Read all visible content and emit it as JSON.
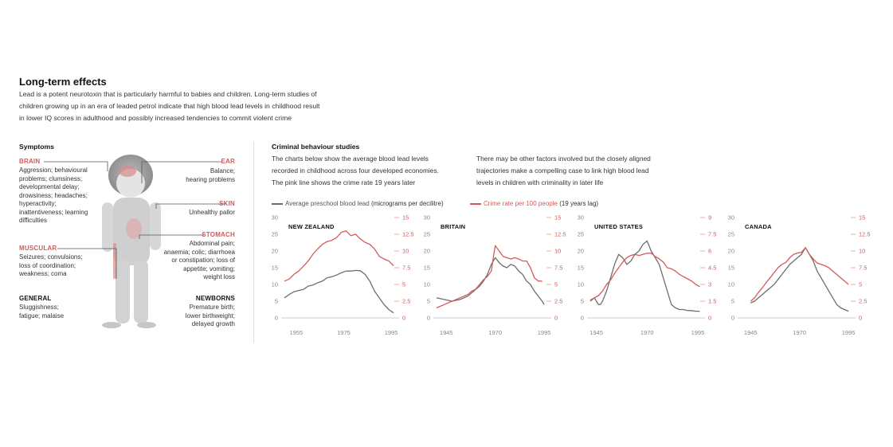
{
  "title": "Long-term effects",
  "intro_lines": [
    "Lead is a potent neurotoxin that is particularly harmful to babies and children. Long-term studies of",
    "children growing up in an era of leaded petrol indicate that high blood lead levels in childhood result",
    "in lower IQ scores in adulthood and possibly increased tendencies to commit violent crime"
  ],
  "symptoms": {
    "heading": "Symptoms",
    "brain": {
      "label": "BRAIN",
      "lines": [
        "Aggression; behavioural",
        "problems; clumsiness;",
        "developmental delay;",
        "drowsiness; headaches;",
        "hyperactivity;",
        "inattentiveness; learning",
        "difficulties"
      ]
    },
    "muscular": {
      "label": "MUSCULAR",
      "lines": [
        "Seizures; convulsions;",
        "loss of coordination;",
        "weakness; coma"
      ]
    },
    "general": {
      "label": "GENERAL",
      "lines": [
        "Sluggishness;",
        "fatigue; malaise"
      ]
    },
    "ear": {
      "label": "EAR",
      "lines": [
        "Balance;",
        "hearing problems"
      ]
    },
    "skin": {
      "label": "SKIN",
      "lines": [
        "Unhealthy pallor"
      ]
    },
    "stomach": {
      "label": "STOMACH",
      "lines": [
        "Abdominal pain;",
        "anaemia; colic; diarrhoea",
        "or constipation; loss of",
        "appetite; vomiting;",
        "weight loss"
      ]
    },
    "newborns": {
      "label": "NEWBORNS",
      "lines": [
        "Premature birth;",
        "lower birthweight;",
        "delayed growth"
      ]
    }
  },
  "criminal": {
    "heading": "Criminal behaviour studies",
    "col1": [
      "The charts below show the average blood lead levels",
      "recorded in childhood across four developed economies.",
      "The pink line shows the crime rate 19 years later"
    ],
    "col2": [
      "There may be other factors involved but the closely aligned",
      "trajectories make a compelling case to link high blood lead",
      "levels in children with criminality in later life"
    ],
    "legend_lead_prefix": "Average preschool blood lead",
    "legend_lead_unit": "(micrograms per decilitre)",
    "legend_crime_prefix": "Crime rate per 100 people",
    "legend_crime_unit": "(19 years lag)"
  },
  "colors": {
    "lead": "#6e6e6e",
    "crime": "#d45a5a"
  },
  "chart_data": [
    {
      "type": "line",
      "title": "NEW ZEALAND",
      "ylim_left": [
        0,
        30
      ],
      "yticks_left": [
        "0",
        "5",
        "10",
        "15",
        "20",
        "25",
        "30"
      ],
      "ylim_right": [
        0,
        15
      ],
      "yticks_right": [
        "0",
        "2.5",
        "5",
        "7.5",
        "10",
        "12.5",
        "15"
      ],
      "xlim": [
        1950,
        1997
      ],
      "xticks": [
        "1955",
        "1975",
        "1995"
      ],
      "xtick_values": [
        1955,
        1975,
        1995
      ],
      "series": [
        {
          "name": "Average preschool blood lead",
          "axis": "left",
          "x": [
            1950,
            1952,
            1954,
            1956,
            1958,
            1960,
            1962,
            1964,
            1966,
            1968,
            1970,
            1972,
            1974,
            1976,
            1978,
            1980,
            1982,
            1984,
            1986,
            1988,
            1990,
            1992,
            1994,
            1996
          ],
          "y": [
            6,
            7,
            7.8,
            8.2,
            8.5,
            9.5,
            9.8,
            10.5,
            11,
            12,
            12.3,
            12.8,
            13.5,
            14,
            14,
            14.2,
            14.1,
            13,
            11,
            8,
            6,
            4,
            2.5,
            1.5
          ]
        },
        {
          "name": "Crime rate per 100 people",
          "axis": "right",
          "x": [
            1950,
            1952,
            1954,
            1956,
            1958,
            1960,
            1962,
            1964,
            1966,
            1968,
            1970,
            1972,
            1974,
            1976,
            1978,
            1980,
            1982,
            1984,
            1986,
            1988,
            1990,
            1992,
            1994,
            1996
          ],
          "y": [
            5.5,
            5.8,
            6.5,
            7,
            7.7,
            8.5,
            9.5,
            10.3,
            11,
            11.4,
            11.6,
            12,
            12.8,
            13,
            12.3,
            12.5,
            11.8,
            11.3,
            11,
            10.3,
            9.2,
            8.8,
            8.5,
            7.8
          ]
        }
      ]
    },
    {
      "type": "line",
      "title": "BRITAIN",
      "ylim_left": [
        0,
        30
      ],
      "yticks_left": [
        "0",
        "5",
        "10",
        "15",
        "20",
        "25",
        "30"
      ],
      "ylim_right": [
        0,
        15
      ],
      "yticks_right": [
        "0",
        "2.5",
        "5",
        "7.5",
        "10",
        "12.5",
        "15"
      ],
      "xlim": [
        1940,
        1997
      ],
      "xticks": [
        "1945",
        "1970",
        "1995"
      ],
      "xtick_values": [
        1945,
        1970,
        1995
      ],
      "series": [
        {
          "name": "Average preschool blood lead",
          "axis": "left",
          "x": [
            1940,
            1944,
            1948,
            1952,
            1956,
            1958,
            1960,
            1962,
            1964,
            1966,
            1968,
            1970,
            1972,
            1974,
            1976,
            1978,
            1980,
            1982,
            1984,
            1986,
            1988,
            1990,
            1992,
            1994,
            1995
          ],
          "y": [
            6,
            5.5,
            5,
            5.5,
            6.5,
            7.5,
            8.5,
            9.5,
            11,
            13,
            16,
            18,
            16.5,
            15.5,
            15,
            16,
            15.5,
            14,
            13,
            11,
            10,
            8,
            6.5,
            5,
            4
          ]
        },
        {
          "name": "Crime rate per 100 people",
          "axis": "right",
          "x": [
            1940,
            1944,
            1948,
            1952,
            1956,
            1958,
            1960,
            1962,
            1964,
            1966,
            1968,
            1969,
            1970,
            1972,
            1974,
            1976,
            1978,
            1980,
            1982,
            1984,
            1986,
            1988,
            1990,
            1992,
            1994
          ],
          "y": [
            1.5,
            2,
            2.5,
            3,
            3.5,
            4,
            4.3,
            5,
            5.7,
            6.2,
            7,
            9,
            10.8,
            10,
            9.2,
            9,
            8.8,
            9,
            8.8,
            8.5,
            8.5,
            7.5,
            6,
            5.5,
            5.5
          ]
        }
      ]
    },
    {
      "type": "line",
      "title": "UNITED STATES",
      "ylim_left": [
        0,
        30
      ],
      "yticks_left": [
        "0",
        "5",
        "10",
        "15",
        "20",
        "25",
        "30"
      ],
      "ylim_right": [
        0,
        9
      ],
      "yticks_right": [
        "0",
        "1.5",
        "3",
        "4.5",
        "6",
        "7.5",
        "9"
      ],
      "xlim": [
        1942,
        1997
      ],
      "xticks": [
        "1945",
        "1970",
        "1995"
      ],
      "xtick_values": [
        1945,
        1970,
        1995
      ],
      "series": [
        {
          "name": "Average preschool blood lead",
          "axis": "left",
          "x": [
            1942,
            1944,
            1946,
            1947,
            1948,
            1950,
            1952,
            1954,
            1956,
            1958,
            1960,
            1962,
            1964,
            1966,
            1968,
            1970,
            1972,
            1974,
            1976,
            1978,
            1980,
            1982,
            1984,
            1986,
            1988,
            1990,
            1992,
            1994,
            1996
          ],
          "y": [
            5,
            6,
            4,
            4,
            5,
            8,
            12,
            16,
            19,
            18,
            16,
            17,
            19,
            20,
            22,
            23,
            20,
            18,
            16,
            12,
            8,
            4,
            3,
            2.5,
            2.5,
            2.2,
            2.2,
            2,
            2
          ]
        },
        {
          "name": "Crime rate per 100 people",
          "axis": "right",
          "x": [
            1942,
            1944,
            1946,
            1948,
            1950,
            1952,
            1954,
            1956,
            1958,
            1960,
            1962,
            1964,
            1966,
            1968,
            1970,
            1972,
            1974,
            1976,
            1978,
            1980,
            1982,
            1984,
            1986,
            1988,
            1990,
            1992,
            1994,
            1996
          ],
          "y": [
            1.6,
            1.8,
            2,
            2.4,
            3,
            3.4,
            4,
            4.5,
            5,
            5.4,
            5.6,
            5.7,
            5.6,
            5.7,
            5.8,
            5.8,
            5.5,
            5.3,
            5,
            4.5,
            4.4,
            4.2,
            3.9,
            3.7,
            3.5,
            3.3,
            3,
            2.8
          ]
        }
      ]
    },
    {
      "type": "line",
      "title": "CANADA",
      "ylim_left": [
        0,
        30
      ],
      "yticks_left": [
        "0",
        "5",
        "10",
        "15",
        "20",
        "25",
        "30"
      ],
      "ylim_right": [
        0,
        15
      ],
      "yticks_right": [
        "0",
        "2.5",
        "5",
        "7.5",
        "10",
        "12.5",
        "15"
      ],
      "xlim": [
        1940,
        1997
      ],
      "xticks": [
        "1945",
        "1970",
        "1995"
      ],
      "xtick_values": [
        1945,
        1970,
        1995
      ],
      "series": [
        {
          "name": "Average preschool blood lead",
          "axis": "left",
          "x": [
            1945,
            1947,
            1949,
            1951,
            1953,
            1955,
            1957,
            1959,
            1961,
            1963,
            1965,
            1967,
            1969,
            1971,
            1973,
            1975,
            1977,
            1979,
            1981,
            1983,
            1985,
            1987,
            1989,
            1991,
            1993,
            1995
          ],
          "y": [
            4.5,
            5,
            6,
            7,
            8,
            9,
            10,
            11.5,
            13,
            14.5,
            16,
            17,
            18,
            19,
            21,
            19,
            17,
            14,
            12,
            10,
            8,
            6,
            4,
            3,
            2.5,
            2
          ]
        },
        {
          "name": "Crime rate per 100 people",
          "axis": "right",
          "x": [
            1945,
            1947,
            1949,
            1951,
            1953,
            1955,
            1957,
            1959,
            1961,
            1963,
            1965,
            1967,
            1969,
            1971,
            1973,
            1975,
            1977,
            1979,
            1981,
            1983,
            1985,
            1987,
            1989,
            1991,
            1993,
            1995
          ],
          "y": [
            2.5,
            3,
            3.8,
            4.5,
            5.3,
            6,
            6.8,
            7.5,
            8,
            8.3,
            9,
            9.5,
            9.7,
            9.8,
            10.5,
            9.5,
            8.8,
            8.2,
            8,
            7.8,
            7.5,
            7,
            6.5,
            6,
            5.5,
            5
          ]
        }
      ]
    }
  ]
}
